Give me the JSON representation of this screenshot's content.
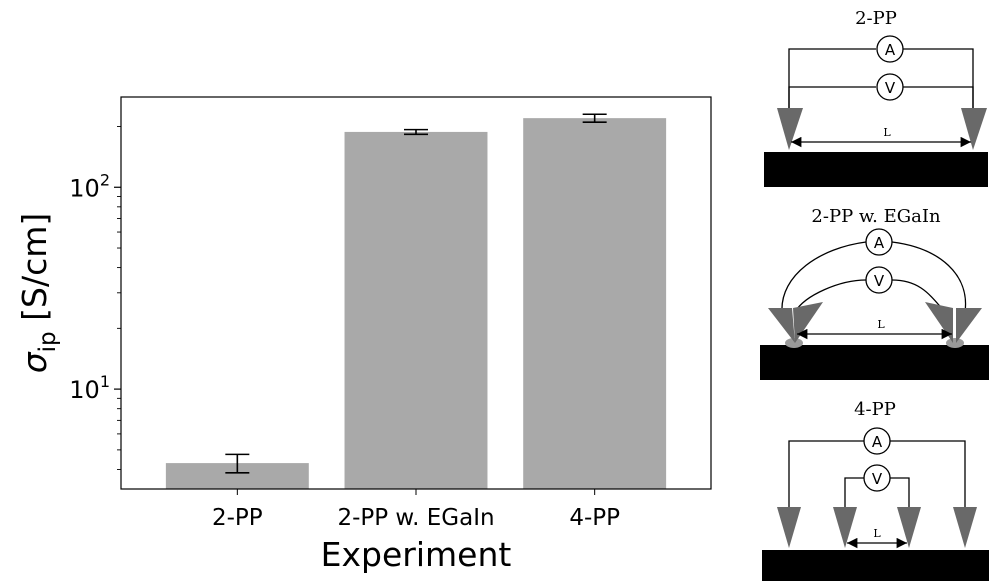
{
  "chart_data": {
    "type": "bar",
    "categories": [
      "2-PP",
      "2-PP w. EGaIn",
      "4-PP"
    ],
    "values": [
      4.3,
      188,
      220
    ],
    "errors": [
      0.45,
      5,
      10
    ],
    "xlabel": "Experiment",
    "ylabel_base": "σ",
    "ylabel_sub": "ip",
    "ylabel_unit": " [S/cm]",
    "yscale": "log",
    "ylim": [
      3.2,
      280
    ],
    "major_ticks": [
      {
        "value": 10,
        "base": "10",
        "exp": "1"
      },
      {
        "value": 100,
        "base": "10",
        "exp": "2"
      }
    ],
    "bar_color": "#a9a9a9",
    "error_color": "#000000"
  },
  "schematics": [
    {
      "title": "2-PP",
      "ammeter": "A",
      "voltmeter": "V",
      "length": "L"
    },
    {
      "title": "2-PP w. EGaIn",
      "ammeter": "A",
      "voltmeter": "V",
      "length": "L"
    },
    {
      "title": "4-PP",
      "ammeter": "A",
      "voltmeter": "V",
      "length": "L"
    }
  ]
}
